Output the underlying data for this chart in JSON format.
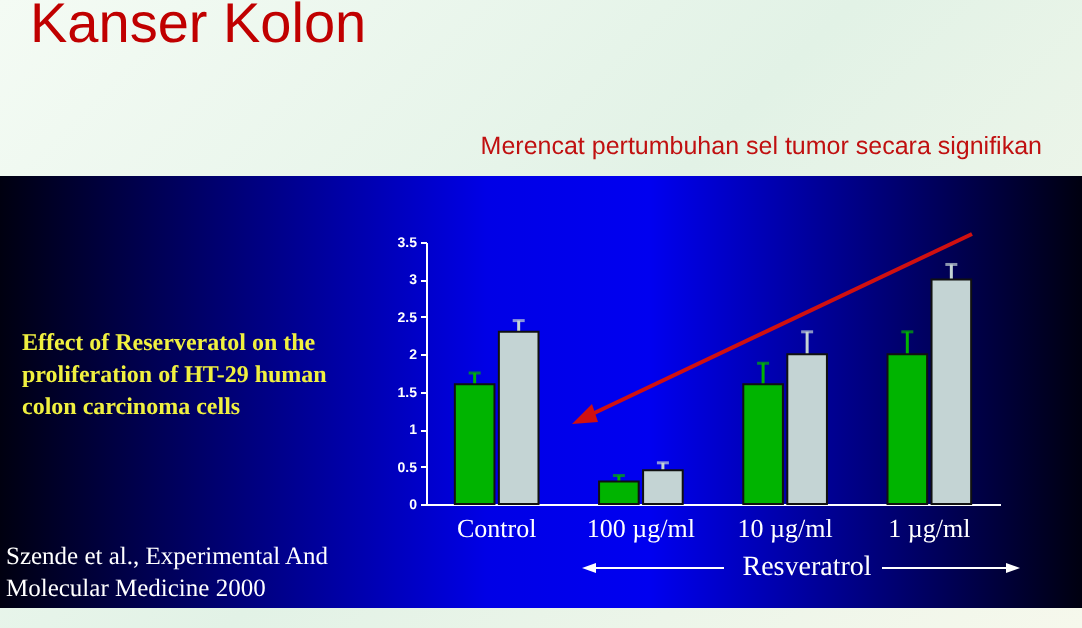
{
  "chart_data": {
    "type": "bar",
    "title": "Kanser Kolon",
    "subtitle": "Merencat pertumbuhan sel tumor secara signifikan",
    "xlabel": "Resveratrol",
    "annotations": [
      "Effect of Reserveratol on the proliferation of HT-29 human colon carcinoma cells",
      "Szende et al., Experimental And Molecular Medicine 2000"
    ],
    "categories": [
      "Control",
      "100 µg/ml",
      "10 µg/ml",
      "1 µg/ml"
    ],
    "series": [
      {
        "color": "#00b400",
        "values": [
          1.6,
          0.3,
          1.6,
          2.0
        ],
        "errors": [
          0.15,
          0.08,
          0.28,
          0.3
        ]
      },
      {
        "color": "#c4d4d4",
        "values": [
          2.3,
          0.45,
          2.0,
          3.0
        ],
        "errors": [
          0.15,
          0.1,
          0.3,
          0.2
        ]
      }
    ],
    "ylim": [
      0,
      3.5
    ],
    "yticks": [
      0,
      0.5,
      1,
      1.5,
      2,
      2.5,
      3,
      3.5
    ]
  }
}
